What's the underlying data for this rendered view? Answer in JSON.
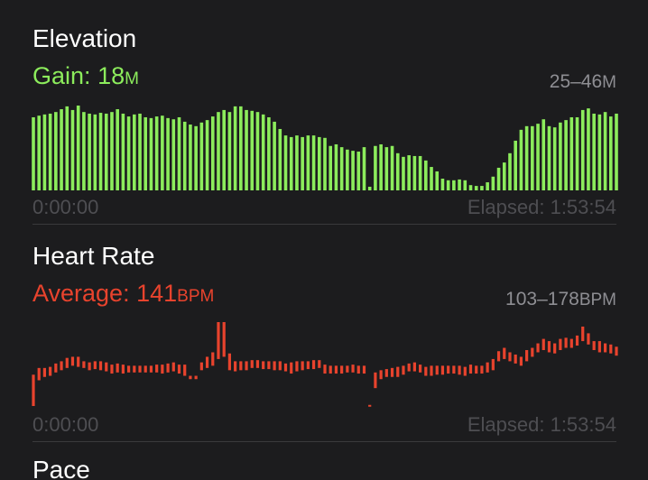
{
  "elevation": {
    "type": "bar",
    "title": "Elevation",
    "summary_label": "Gain:",
    "summary_value": 18,
    "unit": "M",
    "range_label": "25–46",
    "start_label": "0:00:00",
    "end_label": "Elapsed: 1:53:54",
    "color": "#8cec5c",
    "ylim": [
      25,
      46
    ],
    "values": [
      43.1,
      43.5,
      43.8,
      44.0,
      44.4,
      45.1,
      45.8,
      44.9,
      46.0,
      44.4,
      44.0,
      43.8,
      44.2,
      44.0,
      44.4,
      45.1,
      44.0,
      43.3,
      43.8,
      44.0,
      43.1,
      42.9,
      43.3,
      43.5,
      42.9,
      42.6,
      43.1,
      42.0,
      41.3,
      40.9,
      41.8,
      42.4,
      43.3,
      44.4,
      44.9,
      44.4,
      45.8,
      45.8,
      44.9,
      44.7,
      44.4,
      43.8,
      43.1,
      42.0,
      40.2,
      38.6,
      38.2,
      38.6,
      38.2,
      38.6,
      38.6,
      38.2,
      38.0,
      36.0,
      36.4,
      35.7,
      35.1,
      34.8,
      34.6,
      35.7,
      25.9,
      36.0,
      36.4,
      35.7,
      36.0,
      34.2,
      33.3,
      33.7,
      33.5,
      33.5,
      32.4,
      30.8,
      29.7,
      27.9,
      27.5,
      27.5,
      27.7,
      27.5,
      26.3,
      26.1,
      26.1,
      27.0,
      28.4,
      30.6,
      31.9,
      34.2,
      37.3,
      40.0,
      40.9,
      40.9,
      41.5,
      42.6,
      40.9,
      40.6,
      41.8,
      42.4,
      43.1,
      43.1,
      44.9,
      45.3,
      44.0,
      43.8,
      44.4,
      43.3,
      44.0
    ]
  },
  "heart_rate": {
    "type": "range-bar",
    "title": "Heart Rate",
    "summary_label": "Average:",
    "summary_value": 141,
    "unit": "BPM",
    "range_label": "103–178",
    "start_label": "0:00:00",
    "end_label": "Elapsed: 1:53:54",
    "color": "#e8432d",
    "ylim": [
      103,
      178
    ],
    "low": [
      103,
      126,
      129,
      130,
      133,
      135,
      137,
      139,
      138,
      137,
      135,
      136,
      135,
      134,
      132,
      133,
      132,
      133,
      133,
      133,
      133,
      133,
      133,
      132,
      133,
      134,
      132,
      130,
      127,
      127,
      135,
      137,
      139,
      145,
      147,
      135,
      134,
      135,
      135,
      137,
      137,
      136,
      136,
      135,
      135,
      134,
      132,
      134,
      135,
      136,
      136,
      137,
      132,
      132,
      132,
      132,
      133,
      133,
      132,
      132,
      103,
      119,
      127,
      129,
      129,
      129,
      131,
      134,
      134,
      133,
      130,
      130,
      131,
      131,
      132,
      132,
      131,
      130,
      132,
      132,
      132,
      133,
      135,
      143,
      145,
      143,
      141,
      139,
      143,
      147,
      151,
      153,
      151,
      150,
      153,
      155,
      155,
      157,
      161,
      158,
      153,
      151,
      151,
      150,
      148
    ],
    "high": [
      131,
      137,
      137,
      138,
      141,
      143,
      146,
      147,
      147,
      143,
      142,
      143,
      143,
      142,
      140,
      141,
      140,
      139,
      139,
      139,
      139,
      139,
      140,
      140,
      141,
      142,
      140,
      140,
      130,
      130,
      142,
      147,
      151,
      178,
      178,
      150,
      143,
      143,
      143,
      144,
      144,
      143,
      143,
      143,
      143,
      141,
      142,
      143,
      143,
      143,
      144,
      144,
      140,
      139,
      139,
      139,
      139,
      140,
      139,
      139,
      104,
      133,
      135,
      136,
      137,
      138,
      139,
      141,
      142,
      140,
      138,
      139,
      139,
      139,
      139,
      139,
      139,
      138,
      140,
      139,
      139,
      142,
      145,
      152,
      155,
      151,
      149,
      147,
      153,
      155,
      159,
      163,
      161,
      159,
      163,
      164,
      163,
      166,
      174,
      168,
      161,
      161,
      159,
      158,
      156
    ]
  },
  "next_title": "Pace"
}
